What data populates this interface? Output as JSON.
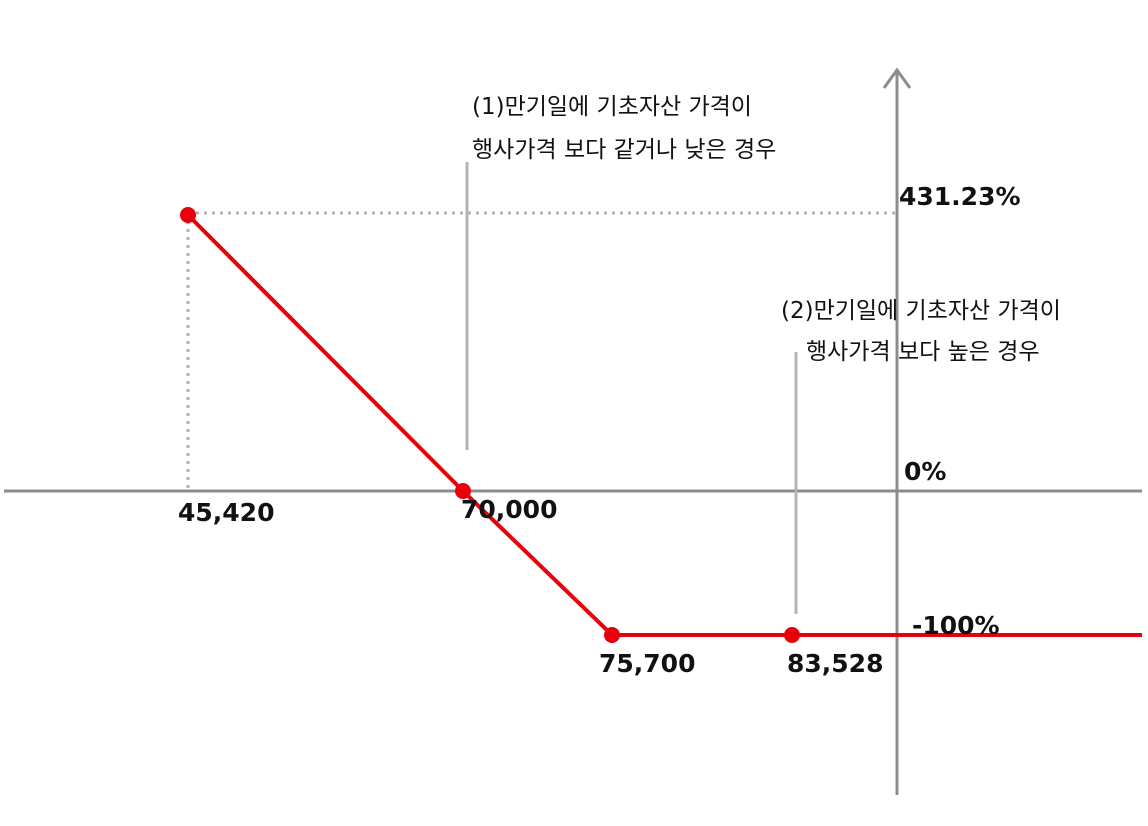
{
  "chart_data": {
    "type": "line",
    "series": [
      {
        "points": [
          {
            "x": 45420,
            "y": 431.23
          },
          {
            "x": 70000,
            "y": 0
          },
          {
            "x": 75700,
            "y": -100
          },
          {
            "x": 83528,
            "y": -100
          }
        ]
      }
    ],
    "marked_points": [
      {
        "x": 45420,
        "y": 431.23
      },
      {
        "x": 70000,
        "y": 0
      },
      {
        "x": 75700,
        "y": -100
      },
      {
        "x": 83528,
        "y": -100
      }
    ],
    "x_labels": [
      "45,420",
      "70,000",
      "75,700",
      "83,528"
    ],
    "y_labels": [
      "431.23%",
      "0%",
      "-100%"
    ],
    "annotations": [
      {
        "lines": [
          "(1)만기일에 기초자산 가격이",
          "행사가격 보다 같거나 낮은 경우"
        ]
      },
      {
        "lines": [
          "(2)만기일에 기초자산 가격이",
          "행사가격 보다 높은 경우"
        ]
      }
    ],
    "line_color": "#e8000b",
    "axis_color": "#8c8c8c",
    "guide_color": "#b4b4b4",
    "grid": false,
    "legend": "none"
  }
}
